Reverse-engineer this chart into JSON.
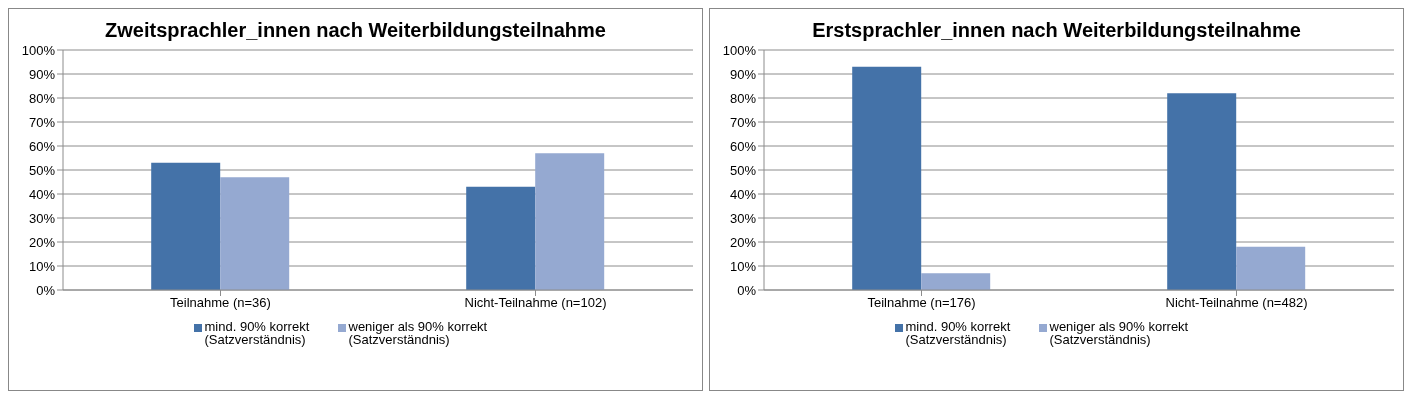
{
  "chart_data": [
    {
      "type": "bar",
      "title": "Zweitsprachler_innen nach Weiterbildungsteilnahme",
      "categories": [
        "Teilnahme (n=36)",
        "Nicht-Teilnahme (n=102)"
      ],
      "series": [
        {
          "name": "mind. 90% korrekt (Satzverständnis)",
          "color": "#4472a8",
          "values": [
            53,
            43
          ]
        },
        {
          "name": "weniger als 90% korrekt (Satzverständnis)",
          "color": "#95a9d1",
          "values": [
            47,
            57
          ]
        }
      ],
      "ylim": [
        0,
        100
      ],
      "yticks": [
        {
          "value": 0,
          "label": "0%"
        },
        {
          "value": 10,
          "label": "10%"
        },
        {
          "value": 20,
          "label": "20%"
        },
        {
          "value": 30,
          "label": "30%"
        },
        {
          "value": 40,
          "label": "40%"
        },
        {
          "value": 50,
          "label": "50%"
        },
        {
          "value": 60,
          "label": "60%"
        },
        {
          "value": 70,
          "label": "70%"
        },
        {
          "value": 80,
          "label": "80%"
        },
        {
          "value": 90,
          "label": "90%"
        },
        {
          "value": 100,
          "label": "100%"
        }
      ],
      "grid": "y",
      "legend": "bottom"
    },
    {
      "type": "bar",
      "title": "Erstsprachler_innen nach Weiterbildungsteilnahme",
      "categories": [
        "Teilnahme (n=176)",
        "Nicht-Teilnahme (n=482)"
      ],
      "series": [
        {
          "name": "mind. 90% korrekt (Satzverständnis)",
          "color": "#4472a8",
          "values": [
            93,
            82
          ]
        },
        {
          "name": "weniger als 90% korrekt (Satzverständnis)",
          "color": "#95a9d1",
          "values": [
            7,
            18
          ]
        }
      ],
      "ylim": [
        0,
        100
      ],
      "yticks": [
        {
          "value": 0,
          "label": "0%"
        },
        {
          "value": 10,
          "label": "10%"
        },
        {
          "value": 20,
          "label": "20%"
        },
        {
          "value": 30,
          "label": "30%"
        },
        {
          "value": 40,
          "label": "40%"
        },
        {
          "value": 50,
          "label": "50%"
        },
        {
          "value": 60,
          "label": "60%"
        },
        {
          "value": 70,
          "label": "70%"
        },
        {
          "value": 80,
          "label": "80%"
        },
        {
          "value": 90,
          "label": "90%"
        },
        {
          "value": 100,
          "label": "100%"
        }
      ],
      "grid": "y",
      "legend": "bottom"
    }
  ]
}
